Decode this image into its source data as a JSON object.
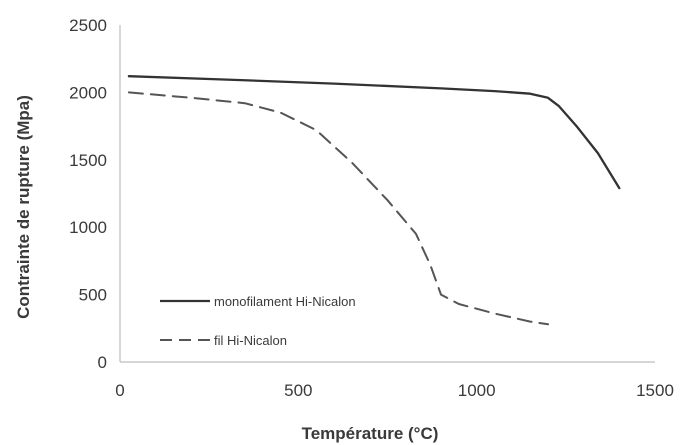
{
  "chart_data": {
    "type": "line",
    "title": "",
    "xlabel": "Température (°C)",
    "ylabel": "Contrainte de rupture (Mpa)",
    "xlim": [
      0,
      1500
    ],
    "ylim": [
      0,
      2500
    ],
    "xticks": [
      0,
      500,
      1000,
      1500
    ],
    "yticks": [
      0,
      500,
      1000,
      1500,
      2000,
      2500
    ],
    "x_tick_labels": [
      "0",
      "500",
      "1000",
      "1500"
    ],
    "y_tick_labels": [
      "0",
      "500",
      "1000",
      "1500",
      "2000",
      "2500"
    ],
    "grid": false,
    "legend_position": "bottom-left",
    "series": [
      {
        "name": "monofilament Hi-Nicalon",
        "style": "solid",
        "color": "#333333",
        "points": [
          [
            25,
            2120
          ],
          [
            300,
            2095
          ],
          [
            600,
            2065
          ],
          [
            900,
            2030
          ],
          [
            1050,
            2010
          ],
          [
            1150,
            1990
          ],
          [
            1200,
            1960
          ],
          [
            1230,
            1900
          ],
          [
            1280,
            1750
          ],
          [
            1340,
            1550
          ],
          [
            1400,
            1290
          ]
        ]
      },
      {
        "name": "fil Hi-Nicalon",
        "style": "dashed",
        "color": "#555555",
        "points": [
          [
            25,
            2000
          ],
          [
            200,
            1960
          ],
          [
            350,
            1920
          ],
          [
            450,
            1850
          ],
          [
            550,
            1720
          ],
          [
            650,
            1480
          ],
          [
            750,
            1200
          ],
          [
            830,
            950
          ],
          [
            870,
            720
          ],
          [
            900,
            500
          ],
          [
            950,
            430
          ],
          [
            1050,
            360
          ],
          [
            1150,
            300
          ],
          [
            1200,
            280
          ]
        ]
      }
    ]
  }
}
